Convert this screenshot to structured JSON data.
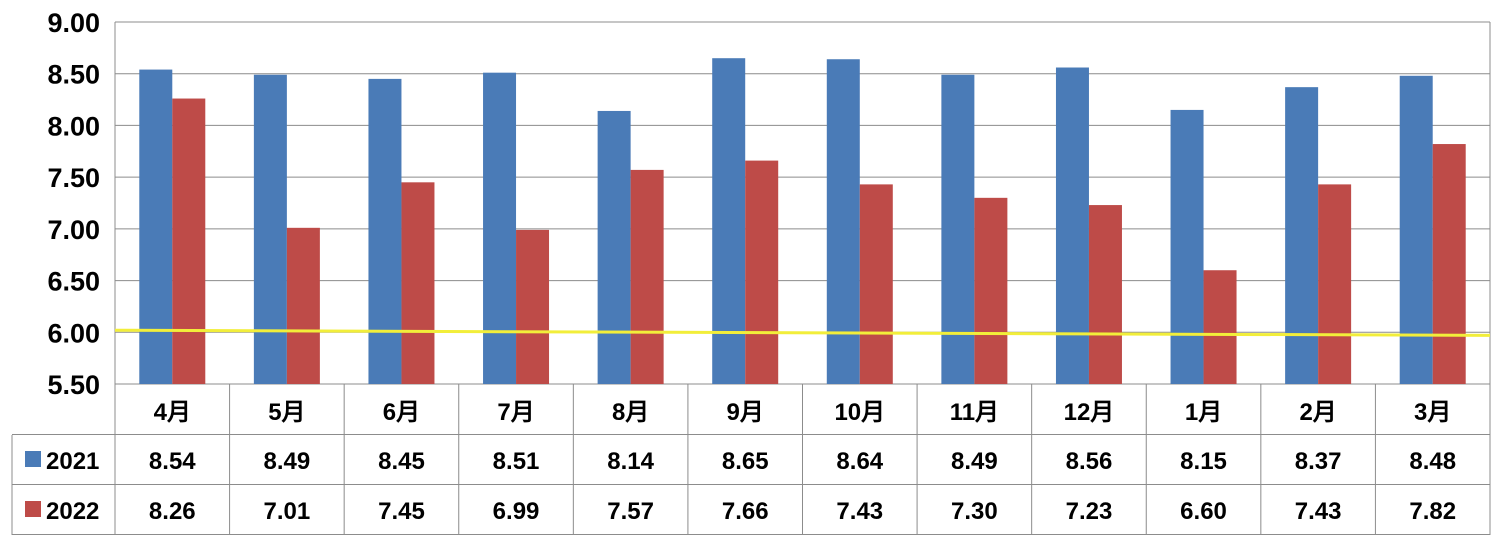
{
  "chart_data": {
    "type": "bar",
    "categories": [
      "4月",
      "5月",
      "6月",
      "7月",
      "8月",
      "9月",
      "10月",
      "11月",
      "12月",
      "1月",
      "2月",
      "3月"
    ],
    "series": [
      {
        "name": "2021",
        "color": "#4a7bb7",
        "values": [
          8.54,
          8.49,
          8.45,
          8.51,
          8.14,
          8.65,
          8.64,
          8.49,
          8.56,
          8.15,
          8.37,
          8.48
        ]
      },
      {
        "name": "2022",
        "color": "#be4b48",
        "values": [
          8.26,
          7.01,
          7.45,
          6.99,
          7.57,
          7.66,
          7.43,
          7.3,
          7.23,
          6.6,
          7.43,
          7.82
        ]
      }
    ],
    "reference_line": {
      "color": "#f2ee3a",
      "start": 6.02,
      "end": 5.97
    },
    "y_ticks": [
      "5.50",
      "6.00",
      "6.50",
      "7.00",
      "7.50",
      "8.00",
      "8.50",
      "9.00"
    ],
    "ylim": [
      5.5,
      9.0
    ],
    "grid": true,
    "data_table": true,
    "title": "",
    "xlabel": "",
    "ylabel": ""
  }
}
